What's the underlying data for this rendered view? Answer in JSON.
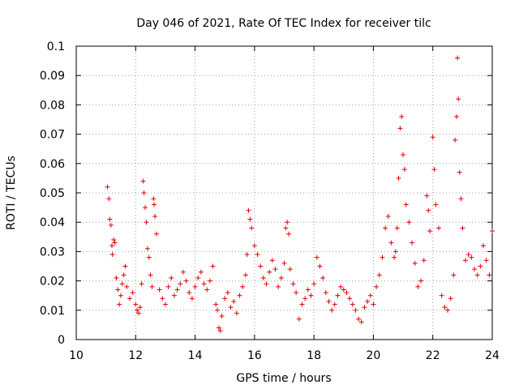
{
  "chart_data": {
    "type": "scatter",
    "title": "Day 046 of 2021, Rate Of TEC Index for receiver tilc",
    "xlabel": "GPS time / hours",
    "ylabel": "ROTI / TECUs",
    "xlim": [
      10,
      24
    ],
    "ylim": [
      0,
      0.1
    ],
    "x_ticks": [
      10,
      12,
      14,
      16,
      18,
      20,
      22,
      24
    ],
    "x_tick_labels": [
      "10",
      "12",
      "14",
      "16",
      "18",
      "20",
      "22",
      "24"
    ],
    "y_ticks": [
      0,
      0.01,
      0.02,
      0.03,
      0.04,
      0.05,
      0.06,
      0.07,
      0.08,
      0.09,
      0.1
    ],
    "y_tick_labels": [
      "0",
      "0.01",
      "0.02",
      "0.03",
      "0.04",
      "0.05",
      "0.06",
      "0.07",
      "0.08",
      "0.09",
      "0.1"
    ],
    "grid": true,
    "marker": "+",
    "color": "#e00000",
    "series": [
      {
        "name": "ROTI",
        "x": [
          11.05,
          11.1,
          11.13,
          11.17,
          11.2,
          11.22,
          11.26,
          11.3,
          11.35,
          11.4,
          11.45,
          11.5,
          11.55,
          11.6,
          11.65,
          11.7,
          11.8,
          11.9,
          12.0,
          12.05,
          12.1,
          12.15,
          12.2,
          12.25,
          12.28,
          12.32,
          12.36,
          12.4,
          12.45,
          12.5,
          12.55,
          12.6,
          12.62,
          12.65,
          12.7,
          12.8,
          12.9,
          13.0,
          13.1,
          13.2,
          13.3,
          13.4,
          13.5,
          13.6,
          13.7,
          13.8,
          13.9,
          14.0,
          14.1,
          14.2,
          14.3,
          14.4,
          14.5,
          14.6,
          14.7,
          14.75,
          14.8,
          14.85,
          14.9,
          15.0,
          15.1,
          15.2,
          15.3,
          15.4,
          15.5,
          15.6,
          15.7,
          15.75,
          15.8,
          15.85,
          15.9,
          16.0,
          16.1,
          16.2,
          16.3,
          16.4,
          16.5,
          16.6,
          16.7,
          16.8,
          16.9,
          17.0,
          17.05,
          17.1,
          17.15,
          17.2,
          17.3,
          17.4,
          17.5,
          17.6,
          17.7,
          17.8,
          17.9,
          18.0,
          18.1,
          18.2,
          18.3,
          18.4,
          18.5,
          18.6,
          18.7,
          18.8,
          18.9,
          19.0,
          19.1,
          19.2,
          19.3,
          19.4,
          19.5,
          19.6,
          19.7,
          19.8,
          19.9,
          20.0,
          20.1,
          20.2,
          20.3,
          20.4,
          20.5,
          20.6,
          20.7,
          20.75,
          20.8,
          20.85,
          20.9,
          20.95,
          21.0,
          21.05,
          21.1,
          21.2,
          21.3,
          21.4,
          21.5,
          21.6,
          21.7,
          21.8,
          21.85,
          21.9,
          22.0,
          22.05,
          22.1,
          22.2,
          22.3,
          22.4,
          22.5,
          22.6,
          22.7,
          22.75,
          22.8,
          22.83,
          22.86,
          22.9,
          22.95,
          23.0,
          23.1,
          23.2,
          23.3,
          23.4,
          23.5,
          23.6,
          23.7,
          23.8,
          23.9,
          24.0
        ],
        "y": [
          0.052,
          0.048,
          0.041,
          0.039,
          0.032,
          0.029,
          0.034,
          0.033,
          0.021,
          0.017,
          0.012,
          0.015,
          0.019,
          0.022,
          0.025,
          0.018,
          0.014,
          0.016,
          0.012,
          0.01,
          0.009,
          0.011,
          0.019,
          0.054,
          0.05,
          0.045,
          0.04,
          0.031,
          0.028,
          0.022,
          0.018,
          0.048,
          0.046,
          0.042,
          0.036,
          0.017,
          0.014,
          0.012,
          0.018,
          0.021,
          0.015,
          0.017,
          0.019,
          0.023,
          0.02,
          0.016,
          0.014,
          0.018,
          0.021,
          0.023,
          0.019,
          0.017,
          0.02,
          0.025,
          0.012,
          0.01,
          0.004,
          0.003,
          0.008,
          0.014,
          0.016,
          0.011,
          0.013,
          0.009,
          0.015,
          0.018,
          0.022,
          0.029,
          0.044,
          0.041,
          0.038,
          0.032,
          0.029,
          0.025,
          0.021,
          0.019,
          0.023,
          0.027,
          0.024,
          0.018,
          0.021,
          0.026,
          0.038,
          0.04,
          0.036,
          0.024,
          0.019,
          0.016,
          0.007,
          0.012,
          0.014,
          0.017,
          0.015,
          0.019,
          0.028,
          0.025,
          0.021,
          0.016,
          0.013,
          0.01,
          0.012,
          0.015,
          0.018,
          0.017,
          0.016,
          0.014,
          0.012,
          0.01,
          0.007,
          0.006,
          0.011,
          0.013,
          0.015,
          0.012,
          0.018,
          0.022,
          0.028,
          0.038,
          0.042,
          0.033,
          0.028,
          0.03,
          0.038,
          0.055,
          0.072,
          0.076,
          0.063,
          0.058,
          0.046,
          0.04,
          0.033,
          0.026,
          0.018,
          0.02,
          0.027,
          0.049,
          0.044,
          0.037,
          0.069,
          0.058,
          0.046,
          0.038,
          0.015,
          0.011,
          0.01,
          0.014,
          0.022,
          0.068,
          0.076,
          0.096,
          0.082,
          0.057,
          0.048,
          0.038,
          0.027,
          0.029,
          0.028,
          0.024,
          0.022,
          0.025,
          0.032,
          0.027,
          0.022,
          0.037
        ]
      }
    ]
  }
}
